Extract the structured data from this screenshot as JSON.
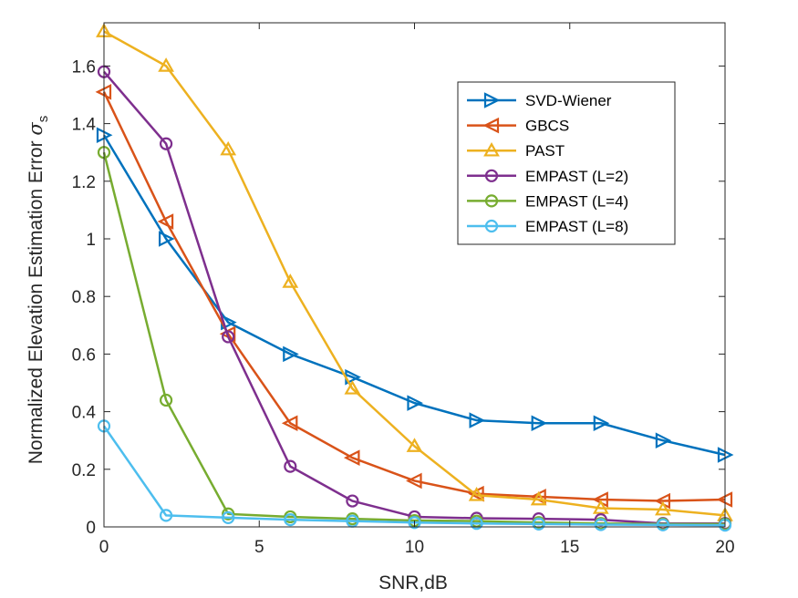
{
  "chart_data": {
    "type": "line",
    "xlabel": "SNR,dB",
    "ylabel_main": "Normalized Elevation Estimation Error ",
    "ylabel_symbol": "σ",
    "ylabel_subscript": "s",
    "xlim": [
      0,
      20
    ],
    "ylim": [
      0,
      1.75
    ],
    "xticks": [
      0,
      5,
      10,
      15,
      20
    ],
    "xtick_labels": [
      "0",
      "5",
      "10",
      "15",
      "20"
    ],
    "yticks": [
      0,
      0.2,
      0.4,
      0.6,
      0.8,
      1.0,
      1.2,
      1.4,
      1.6
    ],
    "ytick_labels": [
      "0",
      "0.2",
      "0.4",
      "0.6",
      "0.8",
      "1",
      "1.2",
      "1.4",
      "1.6"
    ],
    "grid": false,
    "legend_position": "top-right",
    "x": [
      0,
      2,
      4,
      6,
      8,
      10,
      12,
      14,
      16,
      18,
      20
    ],
    "series": [
      {
        "name": "SVD-Wiener",
        "color": "#0072BD",
        "marker": "triangle-right",
        "values": [
          1.36,
          1.0,
          0.71,
          0.6,
          0.52,
          0.43,
          0.37,
          0.36,
          0.36,
          0.3,
          0.25
        ]
      },
      {
        "name": "GBCS",
        "color": "#D95319",
        "marker": "triangle-left",
        "values": [
          1.51,
          1.06,
          0.67,
          0.36,
          0.24,
          0.16,
          0.115,
          0.105,
          0.095,
          0.09,
          0.095
        ]
      },
      {
        "name": "PAST",
        "color": "#EDB120",
        "marker": "triangle-up",
        "values": [
          1.72,
          1.6,
          1.31,
          0.85,
          0.48,
          0.28,
          0.11,
          0.095,
          0.065,
          0.06,
          0.04
        ]
      },
      {
        "name": "EMPAST (L=2)",
        "color": "#7E2F8E",
        "marker": "circle",
        "values": [
          1.58,
          1.33,
          0.66,
          0.21,
          0.09,
          0.035,
          0.03,
          0.028,
          0.025,
          0.012,
          0.012
        ]
      },
      {
        "name": "EMPAST (L=4)",
        "color": "#77AC30",
        "marker": "circle",
        "values": [
          1.3,
          0.44,
          0.045,
          0.035,
          0.028,
          0.022,
          0.02,
          0.015,
          0.012,
          0.01,
          0.01
        ]
      },
      {
        "name": "EMPAST (L=8)",
        "color": "#4DBEEE",
        "marker": "circle",
        "values": [
          0.35,
          0.04,
          0.032,
          0.025,
          0.02,
          0.015,
          0.012,
          0.01,
          0.008,
          0.007,
          0.006
        ]
      }
    ]
  }
}
